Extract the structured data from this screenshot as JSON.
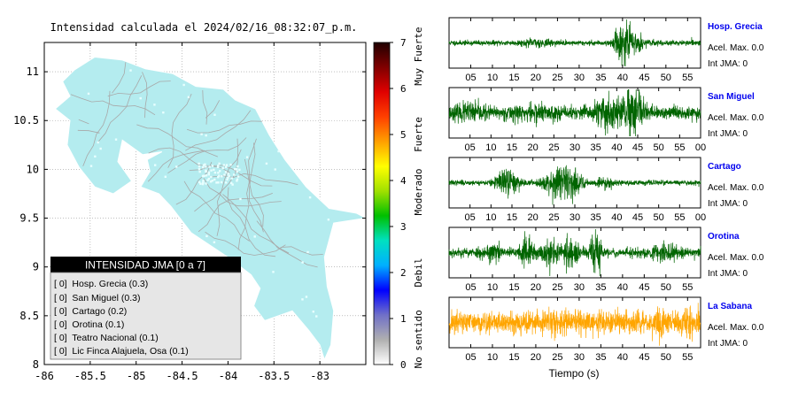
{
  "map": {
    "title": "Intensidad calculada el 2024/02/16_08:32:07_p.m.",
    "xlim": [
      -86,
      -82.5
    ],
    "ylim": [
      8,
      11.3
    ],
    "x_ticks": [
      "-86",
      "-85.5",
      "-85",
      "-84.5",
      "-84",
      "-83.5",
      "-83"
    ],
    "x_tick_values": [
      -86,
      -85.5,
      -85,
      -84.5,
      -84,
      -83.5,
      -83
    ],
    "y_ticks": [
      "8",
      "8.5",
      "9",
      "9.5",
      "10",
      "10.5",
      "11"
    ],
    "y_tick_values": [
      8,
      8.5,
      9,
      9.5,
      10,
      10.5,
      11
    ],
    "land_color": "#b4ecef",
    "outline": [
      [
        -85.67,
        11.02
      ],
      [
        -85.45,
        11.15
      ],
      [
        -85.15,
        11.12
      ],
      [
        -84.9,
        11.03
      ],
      [
        -84.6,
        10.98
      ],
      [
        -84.35,
        10.85
      ],
      [
        -84.05,
        10.82
      ],
      [
        -83.92,
        10.71
      ],
      [
        -83.7,
        10.62
      ],
      [
        -83.55,
        10.35
      ],
      [
        -83.38,
        10.1
      ],
      [
        -83.15,
        9.82
      ],
      [
        -82.9,
        9.6
      ],
      [
        -82.6,
        9.55
      ],
      [
        -82.5,
        9.5
      ],
      [
        -82.85,
        9.45
      ],
      [
        -82.95,
        9.1
      ],
      [
        -82.92,
        8.8
      ],
      [
        -82.85,
        8.55
      ],
      [
        -82.88,
        8.2
      ],
      [
        -82.95,
        8.05
      ],
      [
        -83.0,
        8.2
      ],
      [
        -83.12,
        8.35
      ],
      [
        -83.3,
        8.55
      ],
      [
        -83.6,
        8.45
      ],
      [
        -83.72,
        8.6
      ],
      [
        -83.65,
        8.78
      ],
      [
        -83.75,
        8.92
      ],
      [
        -84.0,
        9.1
      ],
      [
        -84.4,
        9.35
      ],
      [
        -84.62,
        9.62
      ],
      [
        -84.75,
        9.75
      ],
      [
        -84.95,
        9.82
      ],
      [
        -84.85,
        9.98
      ],
      [
        -84.88,
        10.1
      ],
      [
        -84.72,
        10.18
      ],
      [
        -84.93,
        10.15
      ],
      [
        -85.15,
        10.3
      ],
      [
        -85.2,
        10.08
      ],
      [
        -85.05,
        9.88
      ],
      [
        -85.25,
        9.75
      ],
      [
        -85.45,
        9.82
      ],
      [
        -85.62,
        10.02
      ],
      [
        -85.75,
        10.25
      ],
      [
        -85.72,
        10.5
      ],
      [
        -85.88,
        10.62
      ],
      [
        -85.72,
        10.75
      ],
      [
        -85.8,
        10.9
      ],
      [
        -85.67,
        11.02
      ]
    ],
    "legend_title": "INTENSIDAD JMA [0 a 7]",
    "legend_items": [
      "[ 0]  Hosp. Grecia (0.3)",
      "[ 0]  San Miguel (0.3)",
      "[ 0]  Cartago (0.2)",
      "[ 0]  Orotina (0.1)",
      "[ 0]  Teatro Nacional (0.1)",
      "[ 0]  Lic Finca Alajuela, Osa (0.1)"
    ]
  },
  "colorbar": {
    "ticks": [
      "0",
      "1",
      "2",
      "3",
      "4",
      "5",
      "6",
      "7"
    ],
    "tick_values": [
      0,
      1,
      2,
      3,
      4,
      5,
      6,
      7
    ],
    "labels": [
      "No sentido",
      "Debil",
      "Moderado",
      "Fuerte",
      "Muy Fuerte"
    ],
    "label_values": [
      0.55,
      2.0,
      3.75,
      5.0,
      6.7
    ],
    "colors": [
      "#ffffff",
      "#b0b0b0",
      "#7070c8",
      "#0000ff",
      "#00b0ff",
      "#00e0c0",
      "#00c000",
      "#a0e000",
      "#ffff00",
      "#ffa000",
      "#ff4000",
      "#e00000",
      "#800000",
      "#200000"
    ]
  },
  "chart_data": {
    "type": "line",
    "xlabel": "Tiempo (s)",
    "x_tick_labels_1_3": [
      "05",
      "10",
      "15",
      "20",
      "25",
      "30",
      "35",
      "40",
      "45",
      "50",
      "55"
    ],
    "x_tick_labels_2_3": [
      "05",
      "10",
      "15",
      "20",
      "25",
      "30",
      "35",
      "40",
      "45",
      "50",
      "55",
      "00"
    ],
    "x_tick_labels_4_5": [
      "05",
      "10",
      "15",
      "20",
      "25",
      "30",
      "35",
      "40",
      "45",
      "50",
      "55"
    ],
    "series": [
      {
        "name": "Hosp. Grecia",
        "accel": "Acel. Max. 0.0",
        "jma": "Int JMA: 0",
        "color": "#006400",
        "xmax": 58,
        "base": 0.12,
        "bursts": [
          [
            40,
            1.0,
            1.6
          ],
          [
            43,
            0.35,
            2.0
          ],
          [
            20,
            0.12,
            3
          ]
        ],
        "seed": 11
      },
      {
        "name": "San Miguel",
        "accel": "Acel. Max. 0.0",
        "jma": "Int JMA: 0",
        "color": "#006400",
        "xmax": 60,
        "base": 0.3,
        "bursts": [
          [
            39,
            0.8,
            4
          ],
          [
            44,
            0.9,
            2.5
          ],
          [
            5,
            0.25,
            3
          ],
          [
            20,
            0.2,
            5
          ]
        ],
        "seed": 23
      },
      {
        "name": "Cartago",
        "accel": "Acel. Max. 0.0",
        "jma": "Int JMA: 0",
        "color": "#006400",
        "xmax": 60,
        "base": 0.12,
        "bursts": [
          [
            14,
            0.6,
            2.5
          ],
          [
            26,
            0.75,
            3
          ],
          [
            30,
            0.4,
            2
          ],
          [
            37,
            0.25,
            2
          ]
        ],
        "seed": 37
      },
      {
        "name": "Orotina",
        "accel": "Acel. Max. 0.0",
        "jma": "Int JMA: 0",
        "color": "#006400",
        "xmax": 58,
        "base": 0.22,
        "bursts": [
          [
            18,
            0.7,
            1.5
          ],
          [
            23,
            0.6,
            1.5
          ],
          [
            28,
            0.7,
            2
          ],
          [
            34,
            0.95,
            1.2
          ],
          [
            10,
            0.35,
            2
          ],
          [
            50,
            0.3,
            3
          ]
        ],
        "seed": 53
      },
      {
        "name": "La Sabana",
        "accel": "Acel. Max. 0.0",
        "jma": "Int JMA: 0",
        "color": "#ffa500",
        "xmax": 58,
        "base": 0.55,
        "bursts": [
          [
            49,
            0.5,
            1
          ],
          [
            55,
            0.45,
            1
          ]
        ],
        "seed": 71
      }
    ]
  }
}
